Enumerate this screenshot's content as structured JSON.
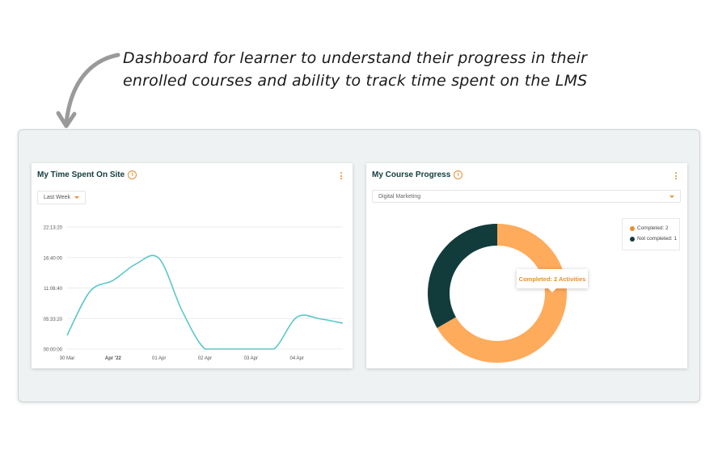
{
  "caption": {
    "line1": "Dashboard for learner to understand their progress in their",
    "line2": "enrolled courses and ability to track time spent on  the LMS"
  },
  "time_card": {
    "title": "My Time Spent On Site",
    "info_icon": "info-icon",
    "menu_icon": "kebab-menu-icon",
    "range_select": "Last Week"
  },
  "progress_card": {
    "title": "My Course Progress",
    "info_icon": "info-icon",
    "menu_icon": "kebab-menu-icon",
    "course_select": "Digital Marketing",
    "legend": [
      "Completed: 2",
      "Not completed: 1"
    ],
    "tooltip": "Completed: 2 Activities"
  },
  "colors": {
    "accent": "#e88e2e",
    "line": "#5ec6c8",
    "completed": "#ffab5c",
    "not_completed": "#123c3c"
  },
  "chart_data": [
    {
      "type": "line",
      "x_ticks": [
        "30 Mar",
        "Apr '22",
        "01 Apr",
        "02 Apr",
        "03 Apr",
        "04 Apr"
      ],
      "y_ticks": [
        "22:13:20",
        "16:40:00",
        "11:06:40",
        "05:33:20",
        "00:00:00"
      ],
      "ylim_hours": [
        0,
        22.22
      ],
      "grid": true,
      "x": [
        0,
        0.5,
        1,
        1.5,
        2,
        2.5,
        3,
        3.5,
        4,
        4.5,
        5,
        5.5,
        6
      ],
      "series": [
        {
          "values_hours": [
            2.5,
            10.5,
            12.5,
            15.5,
            16.5,
            7,
            0,
            0,
            0,
            0,
            5.8,
            5.5,
            4.7
          ]
        }
      ]
    },
    {
      "type": "pie",
      "donut": true,
      "labels": [
        "Completed",
        "Not completed"
      ],
      "values": [
        2,
        1
      ],
      "legend_position": "top-right"
    }
  ]
}
